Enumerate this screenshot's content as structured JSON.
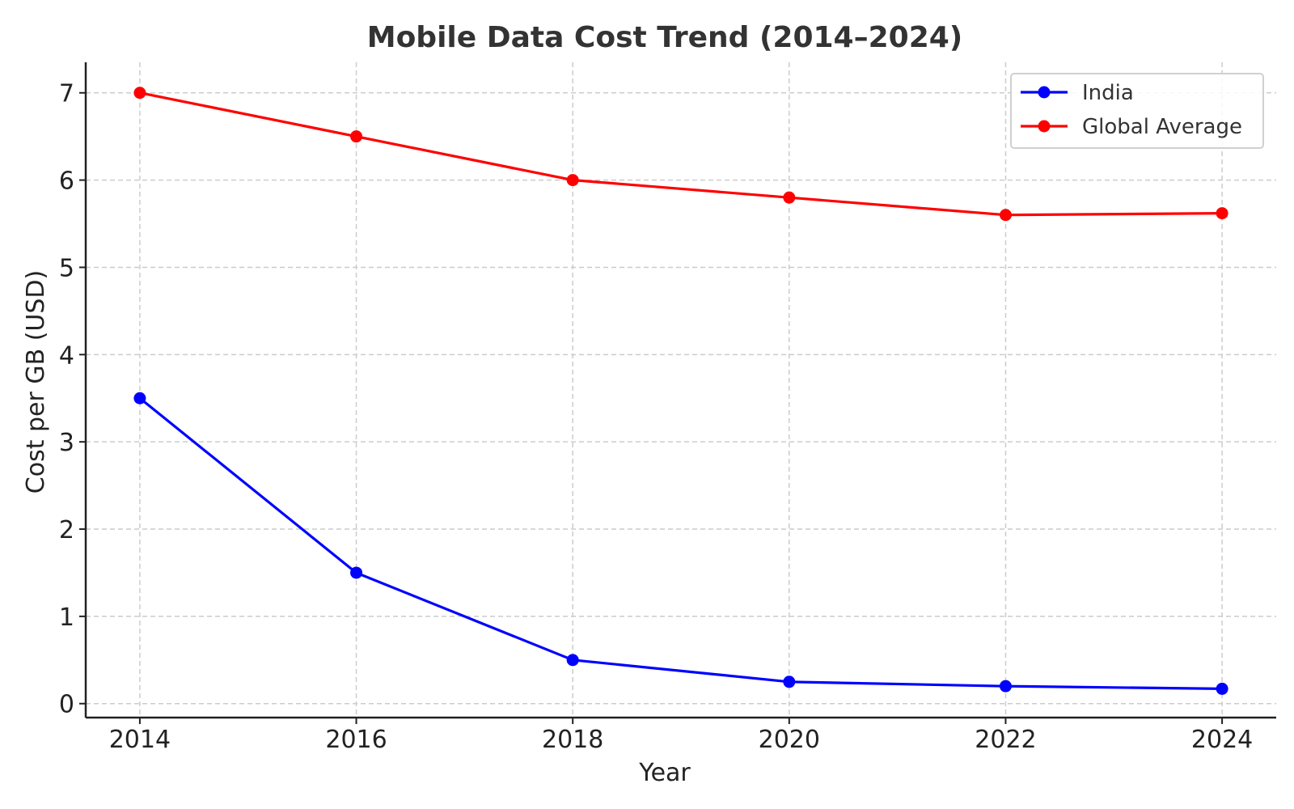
{
  "chart_data": {
    "type": "line",
    "title": "Mobile Data Cost Trend (2014–2024)",
    "xlabel": "Year",
    "ylabel": "Cost per GB (USD)",
    "x": [
      2014,
      2016,
      2018,
      2020,
      2022,
      2024
    ],
    "x_tick_labels": [
      "2014",
      "2016",
      "2018",
      "2020",
      "2022",
      "2024"
    ],
    "y_ticks": [
      0,
      1,
      2,
      3,
      4,
      5,
      6,
      7
    ],
    "y_tick_labels": [
      "0",
      "1",
      "2",
      "3",
      "4",
      "5",
      "6",
      "7"
    ],
    "xlim": [
      2013.5,
      2024.5
    ],
    "ylim": [
      -0.16,
      7.35
    ],
    "grid": true,
    "legend_position": "top-right",
    "series": [
      {
        "name": "India",
        "color": "#0000ff",
        "values": [
          3.5,
          1.5,
          0.5,
          0.25,
          0.2,
          0.17
        ]
      },
      {
        "name": "Global Average",
        "color": "#ff0000",
        "values": [
          7.0,
          6.5,
          6.0,
          5.8,
          5.6,
          5.62
        ]
      }
    ]
  }
}
